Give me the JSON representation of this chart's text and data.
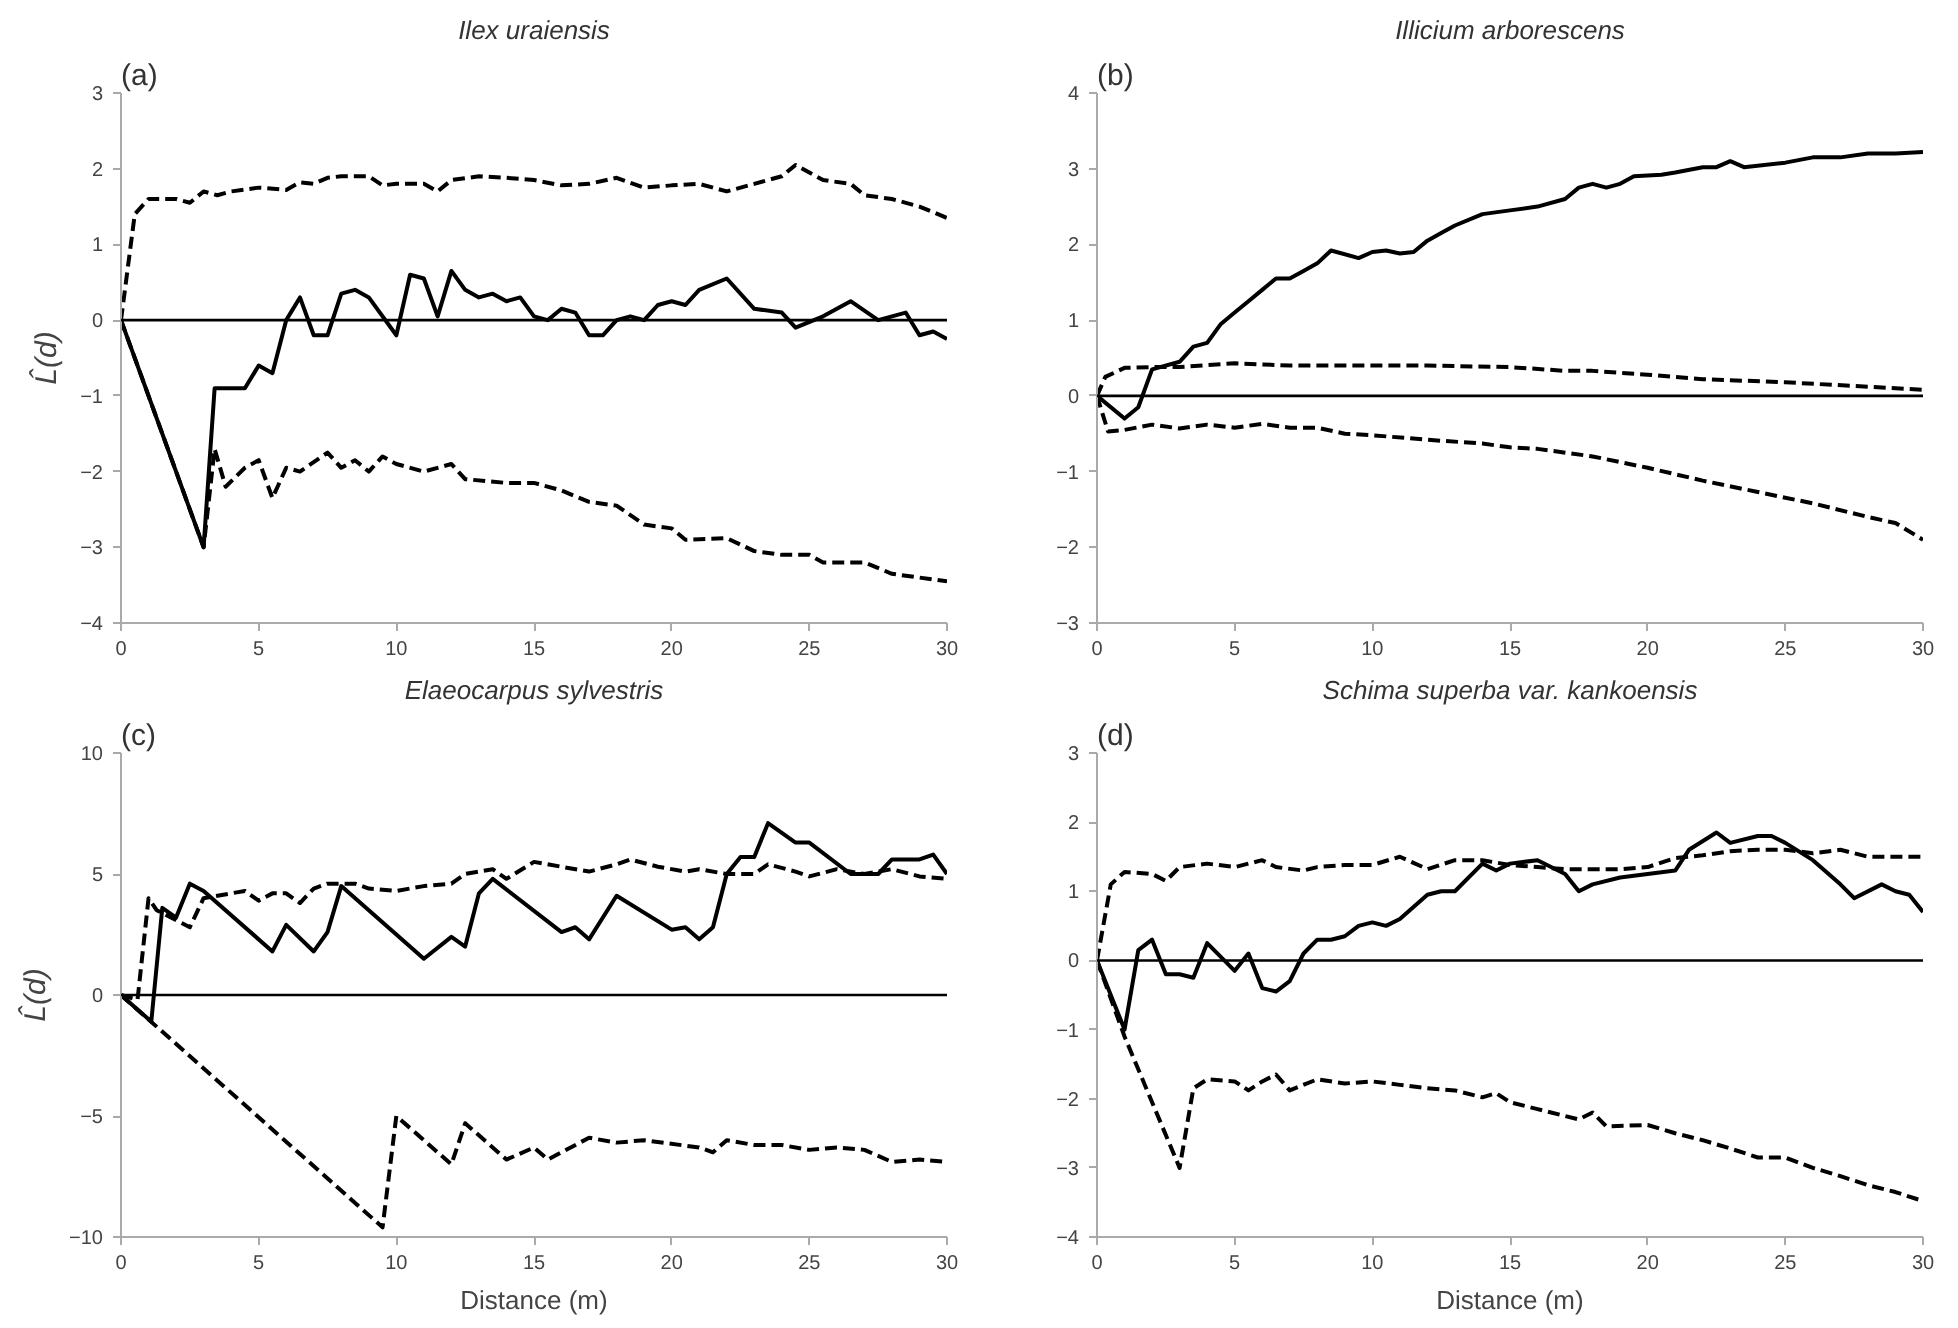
{
  "chart_data": [
    {
      "type": "line",
      "title": "Ilex uraiensis",
      "ylabel": "L̂(d)",
      "annotations": [
        "(a)"
      ],
      "xlim": [
        0,
        30
      ],
      "xticks": [
        0,
        5,
        10,
        15,
        20,
        25,
        30
      ],
      "ylim": [
        -4,
        3
      ],
      "yticks": [
        -4,
        -3,
        -2,
        -1,
        0,
        1,
        2,
        3
      ],
      "grid": false,
      "ref_lines": [
        {
          "axis": "y",
          "value": 0,
          "color": "#000000"
        }
      ],
      "series": [
        {
          "color": "#000000",
          "line_style": "solid",
          "x": [
            0,
            3,
            3.4,
            4,
            4.5,
            5,
            5.5,
            6,
            6.5,
            7,
            7.5,
            8,
            8.5,
            9,
            10,
            10.5,
            11,
            11.5,
            12,
            12.5,
            13,
            13.5,
            14,
            14.5,
            15,
            15.5,
            16,
            16.5,
            17,
            17.5,
            18,
            18.5,
            19,
            19.5,
            20,
            20.5,
            21,
            22,
            23,
            24,
            24.5,
            25.5,
            26.5,
            27.5,
            28.5,
            29,
            29.5,
            30
          ],
          "values": [
            0,
            -3,
            -0.9,
            -0.9,
            -0.9,
            -0.6,
            -0.7,
            0,
            0.3,
            -0.2,
            -0.2,
            0.35,
            0.4,
            0.3,
            -0.2,
            0.6,
            0.55,
            0.05,
            0.65,
            0.4,
            0.3,
            0.35,
            0.25,
            0.3,
            0.05,
            0,
            0.15,
            0.1,
            -0.2,
            -0.2,
            0,
            0.05,
            0,
            0.2,
            0.25,
            0.2,
            0.4,
            0.55,
            0.15,
            0.1,
            -0.1,
            0.05,
            0.25,
            0,
            0.1,
            -0.2,
            -0.15,
            -0.25
          ]
        },
        {
          "color": "#000000",
          "line_style": "dashed",
          "x": [
            0,
            0.5,
            1,
            2,
            2.5,
            3,
            3.5,
            4,
            5,
            6,
            6.5,
            7,
            7.5,
            8,
            9,
            9.5,
            10,
            11,
            11.5,
            12,
            13,
            14,
            15,
            16,
            17,
            18,
            19,
            20,
            21,
            22,
            23,
            24,
            24.5,
            25,
            25.5,
            26.5,
            27,
            28,
            29,
            30
          ],
          "values": [
            0,
            1.4,
            1.6,
            1.6,
            1.55,
            1.7,
            1.65,
            1.7,
            1.75,
            1.72,
            1.82,
            1.8,
            1.88,
            1.9,
            1.9,
            1.78,
            1.8,
            1.8,
            1.7,
            1.85,
            1.9,
            1.88,
            1.85,
            1.78,
            1.8,
            1.88,
            1.75,
            1.78,
            1.8,
            1.7,
            1.8,
            1.9,
            2.05,
            1.95,
            1.85,
            1.8,
            1.65,
            1.6,
            1.5,
            1.35
          ]
        },
        {
          "color": "#000000",
          "line_style": "dashed",
          "x": [
            0,
            3,
            3.4,
            3.8,
            4.5,
            5,
            5.5,
            6,
            6.5,
            7.5,
            8,
            8.5,
            9,
            9.5,
            10,
            11,
            12,
            12.5,
            14,
            15,
            16,
            17,
            18,
            19,
            20,
            20.5,
            22,
            23,
            24,
            25,
            25.5,
            27,
            28,
            29,
            30
          ],
          "values": [
            0,
            -3,
            -1.7,
            -2.2,
            -1.95,
            -1.85,
            -2.35,
            -1.95,
            -2.0,
            -1.75,
            -1.95,
            -1.85,
            -2.0,
            -1.8,
            -1.9,
            -2.0,
            -1.9,
            -2.1,
            -2.15,
            -2.15,
            -2.25,
            -2.4,
            -2.45,
            -2.7,
            -2.75,
            -2.9,
            -2.88,
            -3.05,
            -3.1,
            -3.1,
            -3.2,
            -3.2,
            -3.35,
            -3.4,
            -3.45
          ]
        }
      ]
    },
    {
      "type": "line",
      "title": "Illicium arborescens",
      "annotations": [
        "(b)"
      ],
      "xlim": [
        0,
        30
      ],
      "xticks": [
        0,
        5,
        10,
        15,
        20,
        25,
        30
      ],
      "ylim": [
        -3,
        4
      ],
      "yticks": [
        -3,
        -2,
        -1,
        0,
        1,
        2,
        3,
        4
      ],
      "grid": false,
      "ref_lines": [
        {
          "axis": "y",
          "value": 0,
          "color": "#000000"
        }
      ],
      "series": [
        {
          "color": "#000000",
          "line_style": "solid",
          "x": [
            0,
            1,
            1.5,
            2,
            3,
            3.5,
            4,
            4.5,
            5,
            5.5,
            6,
            6.5,
            7,
            7.5,
            8,
            8.5,
            9.5,
            10,
            10.5,
            11,
            11.5,
            12,
            12.5,
            13,
            14,
            15,
            16,
            17,
            17.5,
            18,
            18.5,
            19,
            19.5,
            20.5,
            21,
            22,
            22.5,
            23,
            23.5,
            25,
            26,
            27,
            28,
            29,
            30
          ],
          "values": [
            0,
            -0.3,
            -0.15,
            0.35,
            0.45,
            0.65,
            0.7,
            0.95,
            1.1,
            1.25,
            1.4,
            1.55,
            1.55,
            1.65,
            1.75,
            1.92,
            1.82,
            1.9,
            1.92,
            1.88,
            1.9,
            2.05,
            2.15,
            2.25,
            2.4,
            2.45,
            2.5,
            2.6,
            2.75,
            2.8,
            2.75,
            2.8,
            2.9,
            2.92,
            2.95,
            3.02,
            3.02,
            3.1,
            3.02,
            3.08,
            3.15,
            3.15,
            3.2,
            3.2,
            3.22
          ]
        },
        {
          "color": "#000000",
          "line_style": "dashed",
          "x": [
            0,
            0.3,
            1,
            2,
            3,
            5,
            7,
            10,
            12,
            15,
            17,
            18,
            20,
            22,
            25,
            28,
            30
          ],
          "values": [
            0,
            0.25,
            0.37,
            0.38,
            0.38,
            0.43,
            0.4,
            0.4,
            0.4,
            0.38,
            0.33,
            0.33,
            0.28,
            0.22,
            0.18,
            0.12,
            0.08
          ]
        },
        {
          "color": "#000000",
          "line_style": "dashed",
          "x": [
            0,
            0.4,
            1,
            2,
            3,
            4,
            5,
            6,
            7,
            8,
            9,
            10,
            12,
            14,
            15,
            16,
            18,
            20,
            22,
            24,
            26,
            28,
            29,
            30
          ],
          "values": [
            0,
            -0.47,
            -0.45,
            -0.38,
            -0.43,
            -0.38,
            -0.42,
            -0.37,
            -0.42,
            -0.42,
            -0.5,
            -0.52,
            -0.58,
            -0.63,
            -0.68,
            -0.7,
            -0.8,
            -0.95,
            -1.12,
            -1.27,
            -1.42,
            -1.6,
            -1.68,
            -1.9
          ]
        }
      ]
    },
    {
      "type": "line",
      "title": "Elaeocarpus sylvestris",
      "xlabel": "Distance (m)",
      "ylabel": "L̂(d)",
      "annotations": [
        "(c)"
      ],
      "xlim": [
        0,
        30
      ],
      "xticks": [
        0,
        5,
        10,
        15,
        20,
        25,
        30
      ],
      "ylim": [
        -10,
        10
      ],
      "yticks": [
        -10,
        -5,
        0,
        5,
        10
      ],
      "grid": false,
      "ref_lines": [
        {
          "axis": "y",
          "value": 0,
          "color": "#000000"
        }
      ],
      "series": [
        {
          "color": "#000000",
          "line_style": "solid",
          "x": [
            0,
            1.1,
            1.5,
            2,
            2.5,
            3,
            5.5,
            6,
            7,
            7.5,
            8,
            11,
            12,
            12.5,
            13,
            13.5,
            16,
            16.5,
            17,
            18,
            20,
            20.5,
            21,
            21.5,
            22,
            22.5,
            23,
            23.5,
            24.5,
            25,
            26.5,
            27.5,
            28,
            29,
            29.5,
            30
          ],
          "values": [
            0,
            -1.1,
            3.6,
            3.2,
            4.6,
            4.3,
            1.8,
            2.9,
            1.8,
            2.6,
            4.5,
            1.5,
            2.4,
            2.0,
            4.2,
            4.8,
            2.6,
            2.8,
            2.3,
            4.1,
            2.7,
            2.8,
            2.3,
            2.8,
            5.0,
            5.7,
            5.7,
            7.1,
            6.3,
            6.3,
            5.0,
            5.0,
            5.6,
            5.6,
            5.8,
            5.0
          ]
        },
        {
          "color": "#000000",
          "line_style": "dashed",
          "x": [
            0,
            0.6,
            1,
            1.3,
            2.5,
            3,
            4,
            4.5,
            5,
            5.5,
            6,
            6.5,
            7,
            7.5,
            8.5,
            9,
            10,
            11,
            12,
            12.5,
            13.5,
            14,
            15,
            16,
            17,
            18,
            18.5,
            19.5,
            20.5,
            21,
            22,
            23,
            23.5,
            24.5,
            25,
            26,
            27,
            28,
            29,
            30
          ],
          "values": [
            0,
            -0.2,
            4.0,
            3.5,
            2.8,
            4.0,
            4.2,
            4.3,
            3.9,
            4.2,
            4.2,
            3.8,
            4.4,
            4.6,
            4.6,
            4.4,
            4.3,
            4.5,
            4.6,
            5.0,
            5.2,
            4.8,
            5.5,
            5.3,
            5.1,
            5.4,
            5.6,
            5.3,
            5.1,
            5.2,
            5.0,
            5.0,
            5.4,
            5.1,
            4.9,
            5.2,
            5.0,
            5.2,
            4.9,
            4.8
          ]
        },
        {
          "color": "#000000",
          "line_style": "dashed",
          "x": [
            0,
            9.5,
            10,
            12,
            12.5,
            14,
            15,
            15.5,
            17,
            18,
            19,
            21,
            21.5,
            22,
            23,
            24,
            25,
            26,
            27,
            28,
            29,
            30
          ],
          "values": [
            0,
            -9.6,
            -5.0,
            -7.0,
            -5.3,
            -6.8,
            -6.3,
            -6.8,
            -5.9,
            -6.1,
            -6.0,
            -6.3,
            -6.5,
            -6.0,
            -6.2,
            -6.2,
            -6.4,
            -6.3,
            -6.4,
            -6.9,
            -6.8,
            -6.9
          ]
        }
      ]
    },
    {
      "type": "line",
      "title": "Schima superba var. kankoensis",
      "xlabel": "Distance (m)",
      "annotations": [
        "(d)"
      ],
      "xlim": [
        0,
        30
      ],
      "xticks": [
        0,
        5,
        10,
        15,
        20,
        25,
        30
      ],
      "ylim": [
        -4,
        3
      ],
      "yticks": [
        -4,
        -3,
        -2,
        -1,
        0,
        1,
        2,
        3
      ],
      "grid": false,
      "ref_lines": [
        {
          "axis": "y",
          "value": 0,
          "color": "#000000"
        }
      ],
      "series": [
        {
          "color": "#000000",
          "line_style": "solid",
          "x": [
            0,
            1,
            1.5,
            2,
            2.5,
            3,
            3.5,
            4,
            5,
            5.5,
            6,
            6.5,
            7,
            7.5,
            8,
            8.5,
            9,
            9.5,
            10,
            10.5,
            11,
            12,
            12.5,
            13,
            14,
            14.5,
            15,
            16,
            17,
            17.5,
            18,
            19,
            20,
            21,
            21.5,
            22.5,
            23,
            24,
            24.5,
            25,
            26,
            27,
            27.5,
            28.5,
            29,
            29.5,
            30
          ],
          "values": [
            0,
            -1.0,
            0.15,
            0.3,
            -0.2,
            -0.2,
            -0.25,
            0.25,
            -0.15,
            0.1,
            -0.4,
            -0.45,
            -0.3,
            0.1,
            0.3,
            0.3,
            0.35,
            0.5,
            0.55,
            0.5,
            0.6,
            0.95,
            1.0,
            1.0,
            1.4,
            1.3,
            1.4,
            1.45,
            1.25,
            1.0,
            1.1,
            1.2,
            1.25,
            1.3,
            1.6,
            1.85,
            1.7,
            1.8,
            1.8,
            1.7,
            1.45,
            1.1,
            0.9,
            1.1,
            1.0,
            0.95,
            0.7
          ]
        },
        {
          "color": "#000000",
          "line_style": "dashed",
          "x": [
            0,
            0.5,
            1,
            2,
            2.5,
            3,
            4,
            5,
            6,
            6.5,
            7.5,
            8,
            9,
            10,
            11,
            12,
            13,
            14,
            15,
            16,
            17,
            18,
            19,
            20,
            21,
            22,
            23,
            24,
            25,
            26,
            27,
            28,
            29,
            30
          ],
          "values": [
            0,
            1.1,
            1.28,
            1.25,
            1.15,
            1.35,
            1.4,
            1.35,
            1.45,
            1.35,
            1.3,
            1.35,
            1.38,
            1.38,
            1.5,
            1.32,
            1.45,
            1.45,
            1.38,
            1.35,
            1.32,
            1.32,
            1.32,
            1.35,
            1.48,
            1.52,
            1.58,
            1.6,
            1.6,
            1.55,
            1.6,
            1.5,
            1.5,
            1.5
          ]
        },
        {
          "color": "#000000",
          "line_style": "dashed",
          "x": [
            0,
            1,
            3,
            3.5,
            4,
            5,
            5.5,
            6,
            6.5,
            7,
            8,
            9,
            10,
            11,
            12,
            13,
            14,
            14.5,
            15,
            16,
            17.5,
            18,
            18.5,
            20,
            21,
            22,
            23,
            24,
            25,
            26,
            27,
            28,
            29,
            30
          ],
          "values": [
            0,
            -1.1,
            -3.0,
            -1.85,
            -1.72,
            -1.75,
            -1.88,
            -1.75,
            -1.65,
            -1.88,
            -1.72,
            -1.78,
            -1.75,
            -1.8,
            -1.85,
            -1.88,
            -1.98,
            -1.92,
            -2.05,
            -2.15,
            -2.3,
            -2.2,
            -2.4,
            -2.38,
            -2.5,
            -2.6,
            -2.72,
            -2.85,
            -2.85,
            -3.0,
            -3.12,
            -3.25,
            -3.35,
            -3.48
          ]
        }
      ]
    }
  ]
}
